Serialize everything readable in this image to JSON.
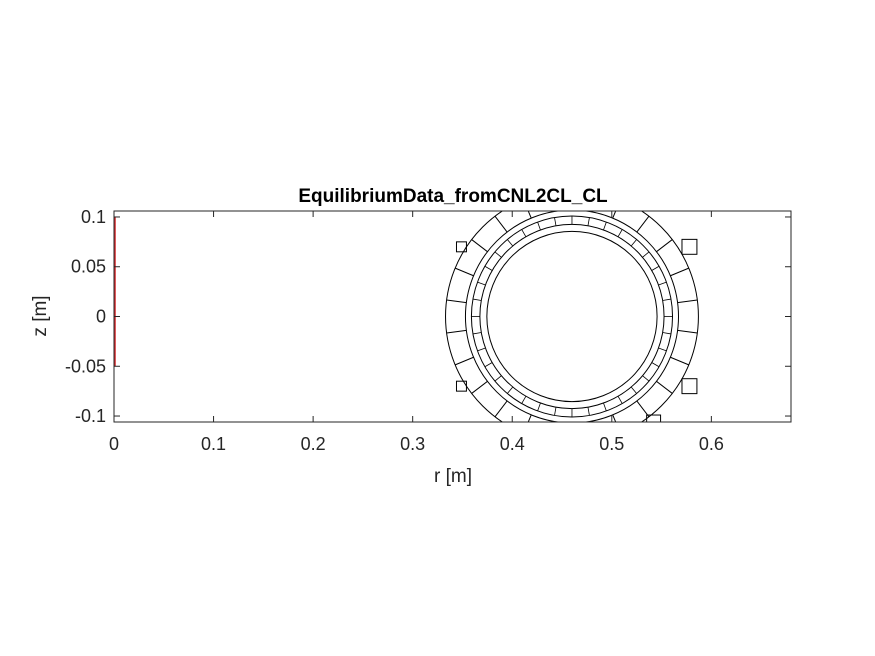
{
  "chart_data": {
    "type": "line",
    "title": "EquilibriumData_fromCNL2CL_CL",
    "xlabel": "r [m]",
    "ylabel": "z [m]",
    "xlim": [
      0,
      0.68
    ],
    "ylim": [
      -0.106,
      0.106
    ],
    "xticks": [
      0,
      0.1,
      0.2,
      0.3,
      0.4,
      0.5,
      0.6
    ],
    "xtick_labels": [
      "0",
      "0.1",
      "0.2",
      "0.3",
      "0.4",
      "0.5",
      "0.6"
    ],
    "yticks": [
      -0.1,
      -0.05,
      0,
      0.05,
      0.1
    ],
    "ytick_labels": [
      "-0.1",
      "-0.05",
      "0",
      "0.05",
      "0.1"
    ],
    "grid": false,
    "line_color": "#000000",
    "marker_color": "#d62728",
    "center_marker": {
      "r": 0,
      "z": [
        -0.05,
        0.1
      ]
    },
    "vessel": {
      "center": [
        0.46,
        0
      ],
      "rings": [
        0.0855,
        0.0925,
        0.101,
        0.107,
        0.127
      ],
      "segment_ring_inner": 0.107,
      "segment_ring_outer": 0.127,
      "segment_count": 24,
      "inner_ring_segments": 36
    },
    "coils": [
      {
        "r": 0.349,
        "z": 0.07,
        "size": 0.01
      },
      {
        "r": 0.349,
        "z": -0.07,
        "size": 0.01
      },
      {
        "r": 0.578,
        "z": 0.07,
        "size": 0.015
      },
      {
        "r": 0.578,
        "z": -0.07,
        "size": 0.015
      },
      {
        "r": 0.542,
        "z": -0.106,
        "size": 0.014
      }
    ]
  }
}
